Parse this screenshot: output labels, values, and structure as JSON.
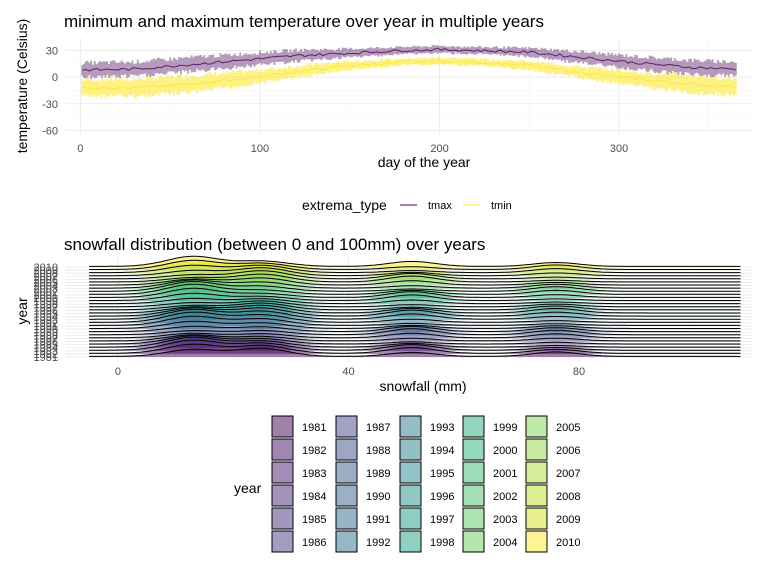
{
  "chart_data": [
    {
      "type": "line",
      "title": "minimum and maximum temperature over year in multiple years",
      "xlabel": "day of the year",
      "ylabel": "temperature (Celsius)",
      "xlim": [
        -8,
        374
      ],
      "ylim": [
        -64,
        44
      ],
      "x_ticks": [
        0,
        100,
        200,
        300
      ],
      "y_ticks": [
        -60,
        -30,
        0,
        30
      ],
      "grid": true,
      "legend": {
        "title": "extrema_type",
        "position": "bottom",
        "entries": [
          {
            "label": "tmax",
            "color": "#440154"
          },
          {
            "label": "tmin",
            "color": "#fde725"
          }
        ]
      },
      "series": [
        {
          "name": "tmax",
          "color": "#440154",
          "x": [
            1,
            30,
            60,
            90,
            120,
            150,
            180,
            200,
            220,
            250,
            280,
            310,
            340,
            365
          ],
          "y": [
            8,
            9,
            14,
            19,
            24,
            27,
            30,
            31,
            30,
            28,
            22,
            16,
            11,
            9
          ],
          "spread": [
            10,
            10,
            10,
            9,
            8,
            6,
            5,
            5,
            5,
            6,
            8,
            9,
            10,
            10
          ]
        },
        {
          "name": "tmin",
          "color": "#fde725",
          "x": [
            1,
            30,
            60,
            90,
            120,
            150,
            180,
            200,
            220,
            250,
            280,
            310,
            340,
            365
          ],
          "y": [
            -12,
            -12,
            -8,
            -2,
            6,
            13,
            17,
            18,
            17,
            13,
            5,
            -2,
            -8,
            -11
          ],
          "spread": [
            12,
            12,
            12,
            10,
            8,
            6,
            5,
            5,
            5,
            6,
            8,
            10,
            12,
            12
          ]
        }
      ]
    },
    {
      "type": "area",
      "subtype": "ridgeline",
      "title": "snowfall distribution (between 0 and 100mm) over years",
      "xlabel": "snowfall (mm)",
      "ylabel": "year",
      "xlim": [
        -9,
        110
      ],
      "x_ticks": [
        0,
        40,
        80
      ],
      "y_ticks": [
        "1981",
        "1982",
        "1983",
        "1984",
        "1985",
        "1986",
        "1987",
        "1988",
        "1989",
        "1990",
        "1991",
        "1992",
        "1993",
        "1994",
        "1995",
        "1996",
        "1997",
        "1998",
        "1999",
        "2000",
        "2001",
        "2002",
        "2003",
        "2004",
        "2005",
        "2006",
        "2007",
        "2008",
        "2009",
        "2010"
      ],
      "grid": true,
      "peak_positions_mm": [
        13,
        25,
        51,
        76
      ],
      "legend": {
        "title": "year",
        "position": "bottom",
        "entries": [
          {
            "label": "1981",
            "color": "#440154"
          },
          {
            "label": "1982",
            "color": "#470E61"
          },
          {
            "label": "1983",
            "color": "#481B6D"
          },
          {
            "label": "1984",
            "color": "#482576"
          },
          {
            "label": "1985",
            "color": "#46307E"
          },
          {
            "label": "1986",
            "color": "#443B84"
          },
          {
            "label": "1987",
            "color": "#404588"
          },
          {
            "label": "1988",
            "color": "#3C4F8A"
          },
          {
            "label": "1989",
            "color": "#38598C"
          },
          {
            "label": "1990",
            "color": "#34618D"
          },
          {
            "label": "1991",
            "color": "#306A8E"
          },
          {
            "label": "1992",
            "color": "#2C728E"
          },
          {
            "label": "1993",
            "color": "#297B8E"
          },
          {
            "label": "1994",
            "color": "#26828E"
          },
          {
            "label": "1995",
            "color": "#238A8D"
          },
          {
            "label": "1996",
            "color": "#20928C"
          },
          {
            "label": "1997",
            "color": "#1F9A8A"
          },
          {
            "label": "1998",
            "color": "#21A286"
          },
          {
            "label": "1999",
            "color": "#27AD81"
          },
          {
            "label": "2000",
            "color": "#2FB47C"
          },
          {
            "label": "2001",
            "color": "#3BBB75"
          },
          {
            "label": "2002",
            "color": "#4AC16D"
          },
          {
            "label": "2003",
            "color": "#5AC864"
          },
          {
            "label": "2004",
            "color": "#6CCD5A"
          },
          {
            "label": "2005",
            "color": "#7FD34E"
          },
          {
            "label": "2006",
            "color": "#93D741"
          },
          {
            "label": "2007",
            "color": "#A8DB34"
          },
          {
            "label": "2008",
            "color": "#BDDF26"
          },
          {
            "label": "2009",
            "color": "#D2E21B"
          },
          {
            "label": "2010",
            "color": "#FDE725"
          }
        ]
      }
    }
  ]
}
